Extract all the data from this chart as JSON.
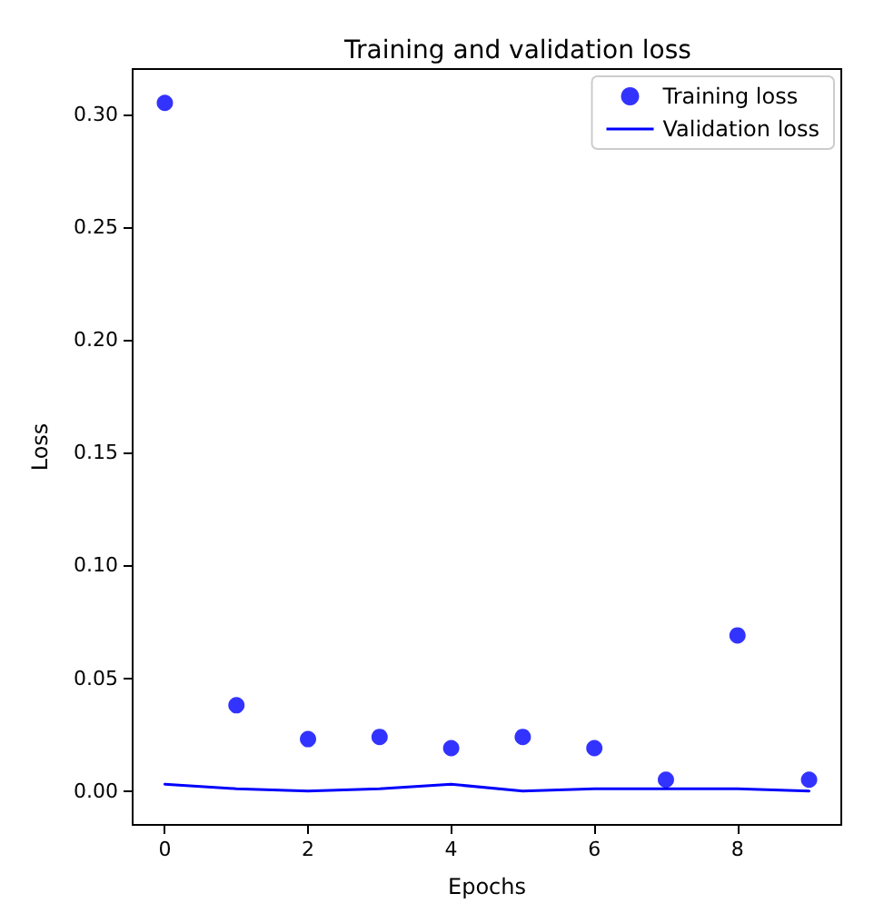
{
  "chart_data": {
    "type": "line",
    "title": "Training and validation loss",
    "xlabel": "Epochs",
    "ylabel": "Loss",
    "x": [
      0,
      1,
      2,
      3,
      4,
      5,
      6,
      7,
      8,
      9
    ],
    "series": [
      {
        "name": "Training loss",
        "type": "scatter",
        "color": "#0000ff",
        "marker": "circle",
        "values": [
          0.305,
          0.038,
          0.023,
          0.024,
          0.019,
          0.024,
          0.019,
          0.005,
          0.069,
          0.005
        ]
      },
      {
        "name": "Validation loss",
        "color": "#0000ff",
        "marker": "none",
        "line_style": "solid",
        "values": [
          0.003,
          0.001,
          0.0,
          0.001,
          0.003,
          0.0,
          0.001,
          0.001,
          0.001,
          0.0
        ]
      }
    ],
    "xlim": [
      -0.45,
      9.45
    ],
    "xticks": [
      0,
      2,
      4,
      6,
      8
    ],
    "ylim": [
      -0.015,
      0.32
    ],
    "yticks": [
      {
        "value": 0,
        "label": "0.00"
      },
      0.05,
      {
        "value": 0.1,
        "label": "0.10"
      },
      0.15,
      {
        "value": 0.2,
        "label": "0.20"
      },
      0.25,
      {
        "value": 0.3,
        "label": "0.30"
      }
    ],
    "grid": false,
    "legend": "top right"
  }
}
